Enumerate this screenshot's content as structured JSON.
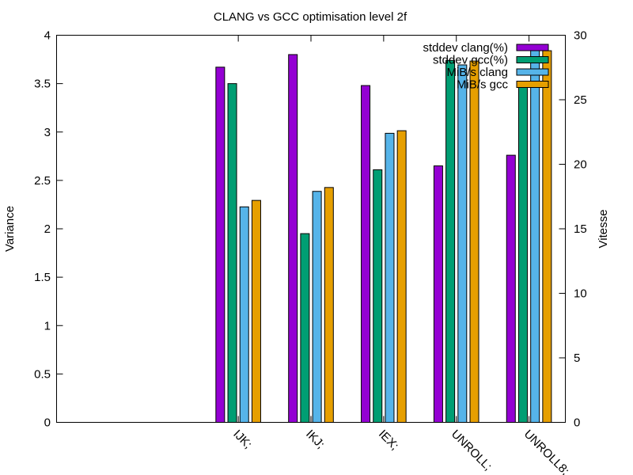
{
  "chart_data": {
    "type": "bar",
    "title": "CLANG vs GCC optimisation level 2f",
    "ylabel": "Variance",
    "y2label": "Vitesse",
    "categories": [
      "IJK;",
      "IKJ;",
      "IEX;",
      "UNROLL;",
      "UNROLL8;"
    ],
    "ylim": [
      0,
      4
    ],
    "y2lim": [
      0,
      30
    ],
    "yticks": [
      "0",
      "0.5",
      "1",
      "1.5",
      "2",
      "2.5",
      "3",
      "3.5",
      "4"
    ],
    "y2ticks": [
      "0",
      "5",
      "10",
      "15",
      "20",
      "25",
      "30"
    ],
    "legend_position": "top-right",
    "grid": false,
    "series": [
      {
        "name": "stddev clang(%)",
        "axis": "y1",
        "color": "#9400d3",
        "values": [
          3.67,
          3.8,
          3.48,
          2.65,
          2.76
        ]
      },
      {
        "name": "stddev gcc(%)",
        "axis": "y1",
        "color": "#009e73",
        "values": [
          3.5,
          1.95,
          2.61,
          3.74,
          3.48
        ]
      },
      {
        "name": "MiB/s clang",
        "axis": "y2",
        "color": "#56b4e9",
        "values": [
          16.7,
          17.9,
          22.4,
          27.7,
          29.1
        ]
      },
      {
        "name": "MiB/s gcc",
        "axis": "y2",
        "color": "#e69f00",
        "values": [
          17.2,
          18.2,
          22.6,
          28.0,
          28.8
        ]
      }
    ]
  }
}
